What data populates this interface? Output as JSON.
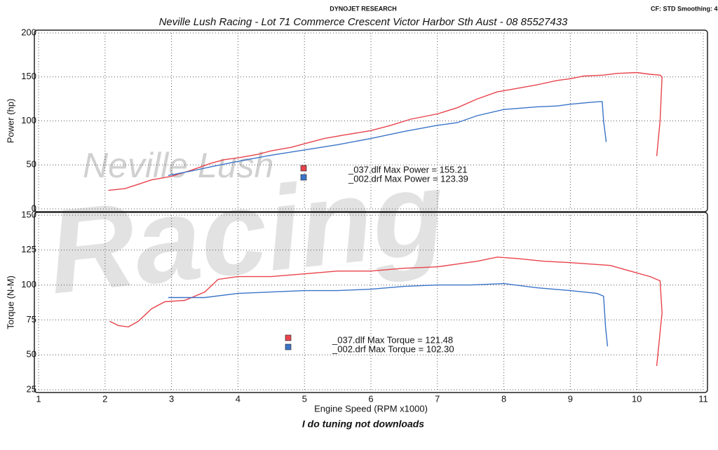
{
  "header": {
    "brand": "DYNOJET RESEARCH",
    "settings": "CF: STD  Smoothing: 4",
    "title": "Neville Lush Racing  - Lot 71 Commerce Crescent  Victor Harbor Sth Aust  - 08 85527433"
  },
  "watermark": [
    "Neville Lush",
    "Racing"
  ],
  "footer": "I do tuning not downloads",
  "chart_data": [
    {
      "type": "line",
      "ylabel": "Power (hp)",
      "xlim": [
        1,
        11
      ],
      "ylim": [
        0,
        200
      ],
      "yticks": [
        0,
        50,
        100,
        150,
        200
      ],
      "grid": true,
      "series": [
        {
          "color": "#e8434b",
          "x": [
            2.05,
            2.3,
            2.5,
            2.7,
            3.0,
            3.3,
            3.6,
            3.8,
            4.0,
            4.3,
            4.5,
            4.8,
            5.0,
            5.3,
            5.6,
            6.0,
            6.3,
            6.6,
            7.0,
            7.3,
            7.6,
            7.9,
            8.2,
            8.5,
            8.8,
            9.0,
            9.2,
            9.5,
            9.7,
            10.0,
            10.2,
            10.35,
            10.38,
            10.35,
            10.3
          ],
          "values": [
            21,
            23,
            28,
            33,
            37,
            44,
            52,
            56,
            58,
            62,
            66,
            70,
            74,
            80,
            84,
            89,
            95,
            102,
            108,
            115,
            125,
            133,
            137,
            141,
            146,
            148,
            151,
            152,
            154,
            155,
            153,
            152,
            150,
            100,
            60
          ]
        },
        {
          "color": "#3a74c8",
          "x": [
            2.95,
            3.3,
            3.6,
            4.0,
            4.5,
            5.0,
            5.5,
            6.0,
            6.5,
            7.0,
            7.3,
            7.6,
            8.0,
            8.5,
            8.8,
            9.0,
            9.3,
            9.45,
            9.48,
            9.5,
            9.54
          ],
          "values": [
            38,
            43,
            48,
            54,
            61,
            67,
            73,
            80,
            88,
            95,
            98,
            106,
            113,
            116,
            117,
            119,
            121,
            122,
            122,
            100,
            76
          ]
        }
      ],
      "annotations": [
        "_037.dlf Max Power = 155.21",
        "_002.drf Max Power = 123.39"
      ]
    },
    {
      "type": "line",
      "ylabel": "Torque (N-M)",
      "xlabel": "Engine Speed (RPM x1000)",
      "xlim": [
        1,
        11
      ],
      "xticks": [
        1,
        2,
        3,
        4,
        5,
        6,
        7,
        8,
        9,
        10,
        11
      ],
      "ylim": [
        25,
        150
      ],
      "yticks": [
        25,
        50,
        75,
        100,
        125,
        150
      ],
      "grid": true,
      "series": [
        {
          "color": "#e8434b",
          "x": [
            2.07,
            2.2,
            2.35,
            2.5,
            2.7,
            2.9,
            3.2,
            3.5,
            3.7,
            4.0,
            4.5,
            5.0,
            5.5,
            6.0,
            6.5,
            7.0,
            7.3,
            7.6,
            7.9,
            8.2,
            8.6,
            9.0,
            9.3,
            9.6,
            9.9,
            10.2,
            10.35,
            10.38,
            10.3
          ],
          "values": [
            74,
            71,
            70,
            74,
            83,
            88,
            89,
            95,
            104,
            106,
            106,
            108,
            110,
            110,
            112,
            113,
            115,
            117,
            120,
            119,
            117,
            116,
            115,
            114,
            110,
            106,
            103,
            80,
            42
          ]
        },
        {
          "color": "#3a74c8",
          "x": [
            2.95,
            3.5,
            4.0,
            4.5,
            5.0,
            5.5,
            6.0,
            6.5,
            7.0,
            7.5,
            8.0,
            8.5,
            9.0,
            9.4,
            9.5,
            9.53,
            9.56
          ],
          "values": [
            91,
            91,
            94,
            95,
            96,
            96,
            97,
            99,
            100,
            100,
            101,
            98,
            96,
            94,
            92,
            70,
            56
          ]
        }
      ],
      "annotations": [
        "_037.dlf Max Torque = 121.48",
        "_002.drf Max Torque = 102.30"
      ]
    }
  ]
}
